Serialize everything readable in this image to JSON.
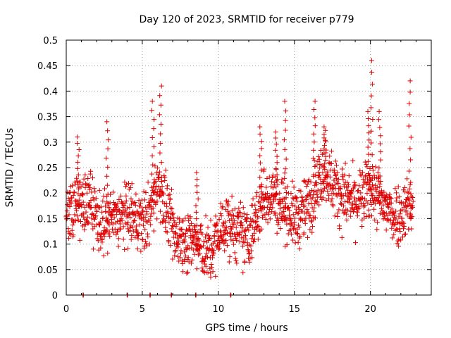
{
  "chart_data": {
    "type": "scatter",
    "title": "Day 120 of 2023, SRMTID for receiver p779",
    "xlabel": "GPS time / hours",
    "ylabel": "SRMTID / TECUs",
    "xlim": [
      0,
      24
    ],
    "ylim": [
      0,
      0.5
    ],
    "x_ticks": [
      0,
      5,
      10,
      15,
      20
    ],
    "x_tick_labels": [
      "0",
      "5",
      "10",
      "15",
      "20"
    ],
    "y_ticks": [
      0,
      0.05,
      0.1,
      0.15,
      0.2,
      0.25,
      0.3,
      0.35,
      0.4,
      0.45,
      0.5
    ],
    "y_tick_labels": [
      "0",
      "0.05",
      "0.1",
      "0.15",
      "0.2",
      "0.25",
      "0.3",
      "0.35",
      "0.4",
      "0.45",
      "0.5"
    ],
    "grid": true,
    "marker": "+",
    "series": [
      {
        "name": "SRMTID",
        "color": "#e00000",
        "baseline": [
          [
            0.0,
            0.16
          ],
          [
            0.5,
            0.18
          ],
          [
            1.0,
            0.17
          ],
          [
            1.5,
            0.19
          ],
          [
            2.0,
            0.15
          ],
          [
            2.5,
            0.14
          ],
          [
            3.0,
            0.15
          ],
          [
            3.5,
            0.15
          ],
          [
            4.0,
            0.16
          ],
          [
            4.5,
            0.15
          ],
          [
            5.0,
            0.14
          ],
          [
            5.5,
            0.16
          ],
          [
            6.0,
            0.22
          ],
          [
            6.5,
            0.18
          ],
          [
            7.0,
            0.12
          ],
          [
            7.5,
            0.11
          ],
          [
            8.0,
            0.11
          ],
          [
            8.5,
            0.1
          ],
          [
            9.0,
            0.09
          ],
          [
            9.5,
            0.08
          ],
          [
            10.0,
            0.12
          ],
          [
            10.5,
            0.14
          ],
          [
            11.0,
            0.13
          ],
          [
            11.5,
            0.12
          ],
          [
            12.0,
            0.11
          ],
          [
            12.5,
            0.15
          ],
          [
            13.0,
            0.19
          ],
          [
            13.5,
            0.2
          ],
          [
            14.0,
            0.18
          ],
          [
            14.5,
            0.17
          ],
          [
            15.0,
            0.15
          ],
          [
            15.5,
            0.16
          ],
          [
            16.0,
            0.18
          ],
          [
            16.5,
            0.22
          ],
          [
            17.0,
            0.25
          ],
          [
            17.5,
            0.22
          ],
          [
            18.0,
            0.2
          ],
          [
            18.5,
            0.19
          ],
          [
            19.0,
            0.18
          ],
          [
            19.5,
            0.19
          ],
          [
            20.0,
            0.21
          ],
          [
            20.5,
            0.19
          ],
          [
            21.0,
            0.17
          ],
          [
            21.5,
            0.16
          ],
          [
            22.0,
            0.16
          ],
          [
            22.5,
            0.18
          ],
          [
            22.8,
            0.17
          ]
        ],
        "spikes": [
          [
            0.8,
            0.31
          ],
          [
            2.7,
            0.34
          ],
          [
            5.7,
            0.38
          ],
          [
            6.2,
            0.41
          ],
          [
            8.6,
            0.24
          ],
          [
            12.8,
            0.33
          ],
          [
            13.8,
            0.32
          ],
          [
            14.4,
            0.38
          ],
          [
            16.3,
            0.38
          ],
          [
            17.0,
            0.33
          ],
          [
            19.9,
            0.36
          ],
          [
            20.1,
            0.46
          ],
          [
            20.6,
            0.36
          ],
          [
            22.6,
            0.42
          ]
        ],
        "zeros": [
          1.1,
          4.0,
          5.5,
          6.9,
          8.5,
          10.8
        ]
      }
    ]
  }
}
